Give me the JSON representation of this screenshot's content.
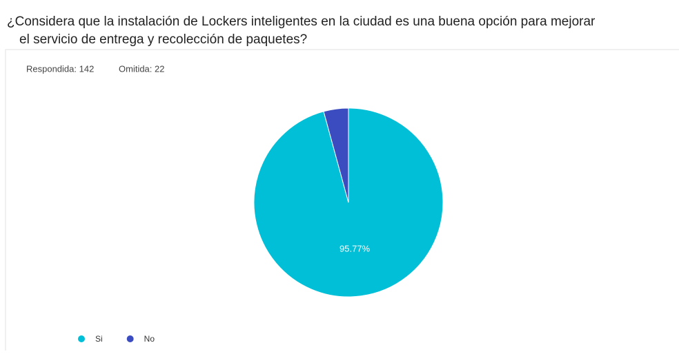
{
  "chart_data": {
    "type": "pie",
    "title": [
      "¿Considera que la instalación de Lockers inteligentes en la ciudad es una buena opción para mejorar",
      "el servicio de entrega y recolección de paquetes?"
    ],
    "responded": "Respondida: 142",
    "omitted": "Omitida: 22",
    "categories": [
      "Si",
      "No"
    ],
    "values": [
      95.77,
      4.23
    ],
    "value_labels": [
      "95.77%",
      null
    ],
    "colors": [
      "#00bfd6",
      "#3b4cc0"
    ],
    "legend": "bottom-left"
  }
}
